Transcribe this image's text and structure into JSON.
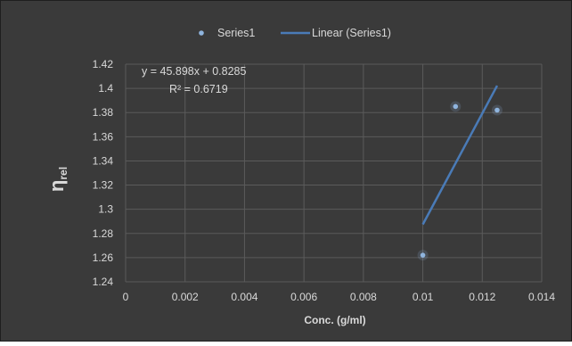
{
  "chart_data": {
    "type": "scatter",
    "title": "",
    "xlabel": "Conc. (g/ml)",
    "ylabel_main": "η",
    "ylabel_sub": "rel",
    "xlim": [
      0,
      0.014
    ],
    "ylim": [
      1.24,
      1.42
    ],
    "x_ticks": [
      "0",
      "0.002",
      "0.004",
      "0.006",
      "0.008",
      "0.01",
      "0.012",
      "0.014"
    ],
    "y_ticks": [
      "1.24",
      "1.26",
      "1.28",
      "1.3",
      "1.32",
      "1.34",
      "1.36",
      "1.38",
      "1.4",
      "1.42"
    ],
    "grid": true,
    "legend_position": "top",
    "legend": [
      "Series1",
      "Linear (Series1)"
    ],
    "series": [
      {
        "name": "Series1",
        "points": [
          {
            "x": 0.01,
            "y": 1.262
          },
          {
            "x": 0.0111,
            "y": 1.385
          },
          {
            "x": 0.0125,
            "y": 1.382
          }
        ]
      }
    ],
    "trendline": {
      "name": "Linear (Series1)",
      "slope": 45.898,
      "intercept": 0.8285,
      "x_start": 0.01,
      "x_end": 0.0125
    },
    "annotations": {
      "equation": "y = 45.898x + 0.8285",
      "r_squared": "R² = 0.6719"
    },
    "colors": {
      "background": "#3a3a3a",
      "grid": "#5b5b5b",
      "text": "#d9d9d9",
      "point": "#8fb4de",
      "trendline": "#4a7bb7",
      "border": "#1e1e1e"
    }
  }
}
